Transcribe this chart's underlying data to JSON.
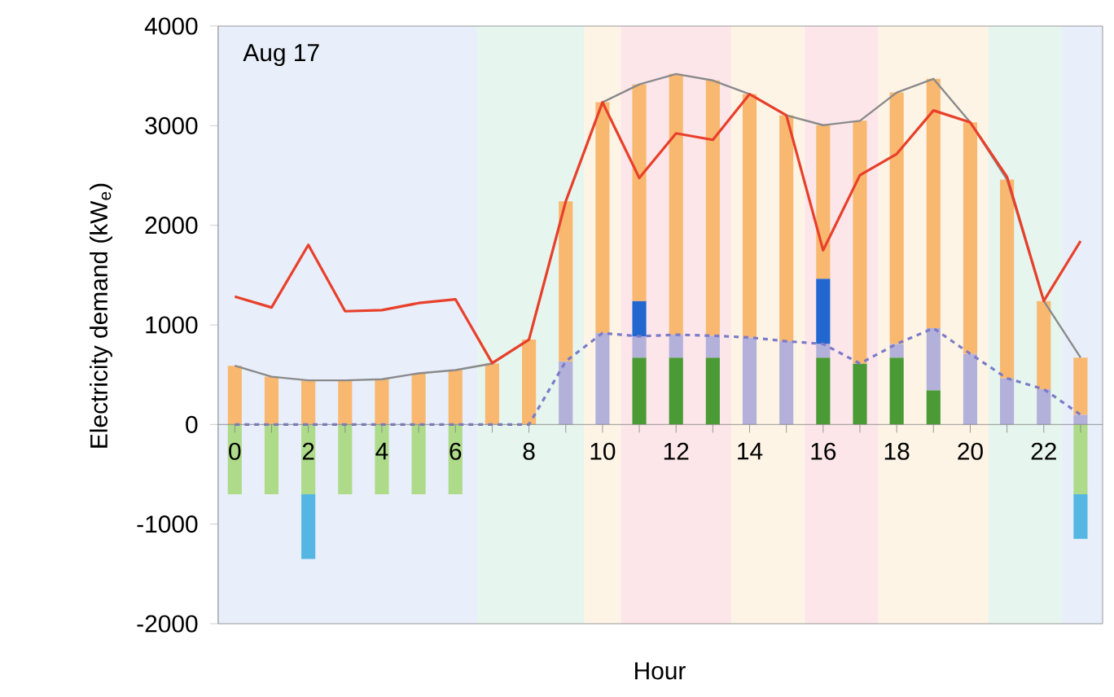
{
  "chart_data": {
    "type": "bar",
    "stacked": true,
    "xlabel": "Hour",
    "ylabel": "Electricity demand (kW$_{e}$)",
    "annotations": [
      "Aug 17"
    ],
    "x": [
      0,
      1,
      2,
      3,
      4,
      5,
      6,
      7,
      8,
      9,
      10,
      11,
      12,
      13,
      14,
      15,
      16,
      17,
      18,
      19,
      20,
      21,
      22,
      23
    ],
    "xlim": [
      -0.45,
      23.6
    ],
    "ylim": [
      -2000,
      4000
    ],
    "xticks": [
      0,
      {
        "value": 1,
        "label": null
      },
      2,
      {
        "value": 3,
        "label": null
      },
      4,
      {
        "value": 5,
        "label": null
      },
      6,
      {
        "value": 7,
        "label": null
      },
      8,
      {
        "value": 9,
        "label": null
      },
      10,
      {
        "value": 11,
        "label": null
      },
      12,
      {
        "value": 13,
        "label": null
      },
      14,
      {
        "value": 15,
        "label": null
      },
      16,
      {
        "value": 17,
        "label": null
      },
      18,
      {
        "value": 19,
        "label": null
      },
      20,
      {
        "value": 21,
        "label": null
      },
      22,
      {
        "value": 23,
        "label": null
      }
    ],
    "yticks": [
      -2000,
      -1000,
      0,
      1000,
      2000,
      3000,
      4000
    ],
    "grid": false,
    "bands": [
      {
        "axis": "x",
        "from": -0.45,
        "to": 6.6,
        "color": "#e8eefa"
      },
      {
        "axis": "x",
        "from": 6.6,
        "to": 9.5,
        "color": "#e6f5ee"
      },
      {
        "axis": "x",
        "from": 9.5,
        "to": 10.5,
        "color": "#fdf4e6"
      },
      {
        "axis": "x",
        "from": 10.5,
        "to": 13.5,
        "color": "#fce6ea"
      },
      {
        "axis": "x",
        "from": 13.5,
        "to": 15.5,
        "color": "#fdf4e6"
      },
      {
        "axis": "x",
        "from": 15.5,
        "to": 17.5,
        "color": "#fce6ea"
      },
      {
        "axis": "x",
        "from": 17.5,
        "to": 20.5,
        "color": "#fdf4e6"
      },
      {
        "axis": "x",
        "from": 20.5,
        "to": 22.5,
        "color": "#e6f5ee"
      },
      {
        "axis": "x",
        "from": 22.5,
        "to": 23.6,
        "color": "#e8eefa"
      }
    ],
    "series": [
      {
        "color": "#4a9a35",
        "values": [
          null,
          null,
          null,
          null,
          null,
          null,
          null,
          null,
          null,
          null,
          null,
          672,
          672,
          672,
          null,
          null,
          672,
          612,
          672,
          344,
          null,
          null,
          null,
          null
        ]
      },
      {
        "color": "#b3b0da",
        "values": [
          null,
          null,
          null,
          null,
          null,
          null,
          null,
          null,
          null,
          634,
          918,
          213,
          230,
          219,
          874,
          836,
          137,
          null,
          137,
          623,
          710,
          464,
          355,
          98
        ]
      },
      {
        "color": "#2266d0",
        "values": [
          null,
          null,
          null,
          null,
          null,
          null,
          null,
          null,
          null,
          null,
          null,
          355,
          null,
          null,
          null,
          null,
          655,
          null,
          null,
          null,
          null,
          null,
          null,
          null
        ]
      },
      {
        "color": "#f9b870",
        "values": [
          590,
          480,
          443,
          443,
          454,
          514,
          546,
          612,
          852,
          1606,
          2317,
          2175,
          2617,
          2563,
          2443,
          2268,
          1541,
          2437,
          2524,
          2503,
          2323,
          1995,
          885,
          574
        ]
      },
      {
        "color": "#aedb8a",
        "values": [
          -700,
          -700,
          -700,
          -700,
          -700,
          -700,
          -700,
          null,
          null,
          null,
          null,
          null,
          null,
          null,
          null,
          null,
          null,
          null,
          null,
          null,
          null,
          null,
          null,
          -700
        ]
      },
      {
        "color": "#55b6e3",
        "values": [
          null,
          null,
          -650,
          null,
          null,
          null,
          null,
          null,
          null,
          null,
          null,
          null,
          null,
          null,
          null,
          null,
          null,
          null,
          null,
          null,
          null,
          null,
          null,
          -448
        ]
      },
      {
        "type": "line",
        "color": "#8a8a8a",
        "line_style": "solid",
        "values": [
          590,
          480,
          443,
          443,
          454,
          514,
          546,
          612,
          852,
          2240,
          3235,
          3415,
          3519,
          3454,
          3317,
          3104,
          3005,
          3049,
          3333,
          3470,
          3033,
          2459,
          1240,
          672
        ]
      },
      {
        "type": "line",
        "color": "#7b7bc8",
        "line_style": "dashed",
        "values": [
          0,
          0,
          0,
          0,
          0,
          0,
          0,
          0,
          0,
          634,
          918,
          885,
          902,
          891,
          874,
          836,
          809,
          612,
          809,
          967,
          710,
          464,
          355,
          98
        ]
      },
      {
        "type": "line",
        "color": "#e8402a",
        "line_style": "solid",
        "values": [
          1284,
          1175,
          1803,
          1137,
          1148,
          1219,
          1257,
          617,
          852,
          2240,
          3235,
          2475,
          2923,
          2858,
          3317,
          3104,
          1749,
          2503,
          2716,
          3153,
          3033,
          2486,
          1240,
          1842
        ]
      }
    ]
  }
}
